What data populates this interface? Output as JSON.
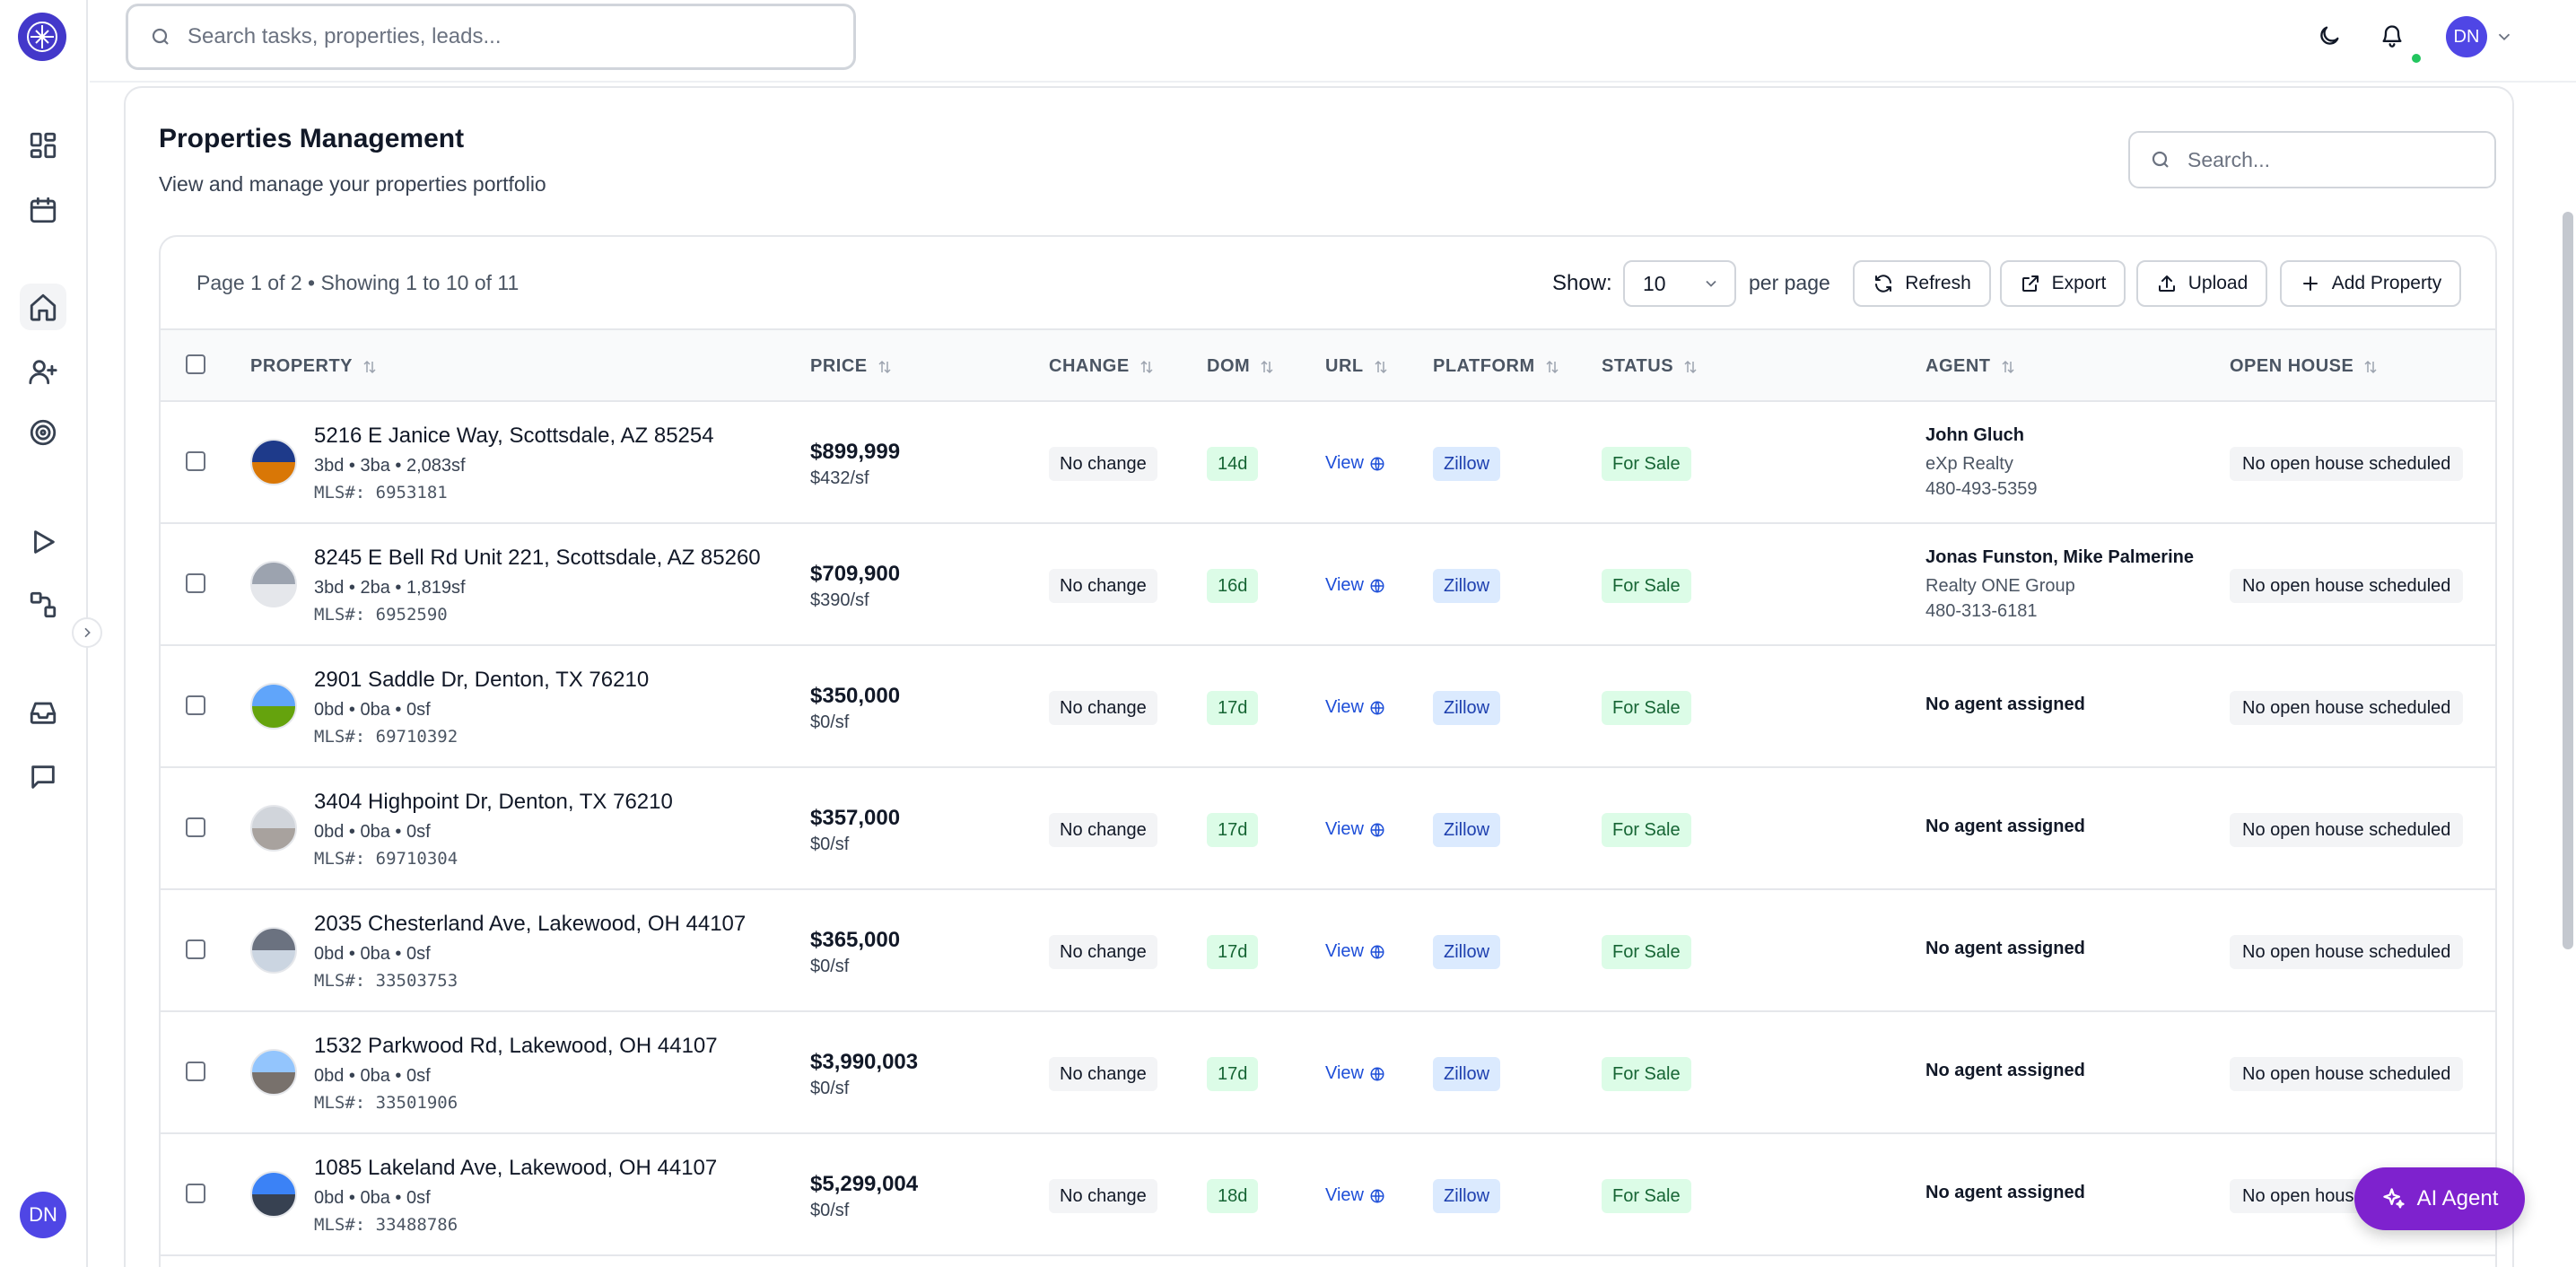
{
  "app": {
    "avatar_initials": "DN",
    "search_placeholder": "Search tasks, properties, leads..."
  },
  "page": {
    "title": "Properties Management",
    "subtitle": "View and manage your properties portfolio",
    "search_placeholder": "Search..."
  },
  "toolbar": {
    "page_info": "Page 1 of 2 • Showing 1 to 10 of 11",
    "show_label": "Show:",
    "per_page_value": "10",
    "per_page_label": "per page",
    "refresh": "Refresh",
    "export": "Export",
    "upload": "Upload",
    "add_property": "Add Property"
  },
  "columns": {
    "property": "PROPERTY",
    "price": "PRICE",
    "change": "CHANGE",
    "dom": "DOM",
    "url": "URL",
    "platform": "PLATFORM",
    "status": "STATUS",
    "agent": "AGENT",
    "open_house": "OPEN HOUSE"
  },
  "rows": [
    {
      "address": "5216 E Janice Way, Scottsdale, AZ 85254",
      "specs": "3bd • 3ba • 2,083sf",
      "mls": "MLS#: 6953181",
      "price": "$899,999",
      "ppsf": "$432/sf",
      "change": "No change",
      "dom": "14d",
      "url": "View",
      "platform": "Zillow",
      "status": "For Sale",
      "agent_name": "John Gluch",
      "agent_company": "eXp Realty",
      "agent_phone": "480-493-5359",
      "open_house": "No open house scheduled"
    },
    {
      "address": "8245 E Bell Rd Unit 221, Scottsdale, AZ 85260",
      "specs": "3bd • 2ba • 1,819sf",
      "mls": "MLS#: 6952590",
      "price": "$709,900",
      "ppsf": "$390/sf",
      "change": "No change",
      "dom": "16d",
      "url": "View",
      "platform": "Zillow",
      "status": "For Sale",
      "agent_name": "Jonas Funston, Mike Palmerine",
      "agent_company": "Realty ONE Group",
      "agent_phone": "480-313-6181",
      "open_house": "No open house scheduled"
    },
    {
      "address": "2901 Saddle Dr, Denton, TX 76210",
      "specs": "0bd • 0ba • 0sf",
      "mls": "MLS#: 69710392",
      "price": "$350,000",
      "ppsf": "$0/sf",
      "change": "No change",
      "dom": "17d",
      "url": "View",
      "platform": "Zillow",
      "status": "For Sale",
      "agent_name": "No agent assigned",
      "agent_company": "",
      "agent_phone": "",
      "open_house": "No open house scheduled"
    },
    {
      "address": "3404 Highpoint Dr, Denton, TX 76210",
      "specs": "0bd • 0ba • 0sf",
      "mls": "MLS#: 69710304",
      "price": "$357,000",
      "ppsf": "$0/sf",
      "change": "No change",
      "dom": "17d",
      "url": "View",
      "platform": "Zillow",
      "status": "For Sale",
      "agent_name": "No agent assigned",
      "agent_company": "",
      "agent_phone": "",
      "open_house": "No open house scheduled"
    },
    {
      "address": "2035 Chesterland Ave, Lakewood, OH 44107",
      "specs": "0bd • 0ba • 0sf",
      "mls": "MLS#: 33503753",
      "price": "$365,000",
      "ppsf": "$0/sf",
      "change": "No change",
      "dom": "17d",
      "url": "View",
      "platform": "Zillow",
      "status": "For Sale",
      "agent_name": "No agent assigned",
      "agent_company": "",
      "agent_phone": "",
      "open_house": "No open house scheduled"
    },
    {
      "address": "1532 Parkwood Rd, Lakewood, OH 44107",
      "specs": "0bd • 0ba • 0sf",
      "mls": "MLS#: 33501906",
      "price": "$3,990,003",
      "ppsf": "$0/sf",
      "change": "No change",
      "dom": "17d",
      "url": "View",
      "platform": "Zillow",
      "status": "For Sale",
      "agent_name": "No agent assigned",
      "agent_company": "",
      "agent_phone": "",
      "open_house": "No open house scheduled"
    },
    {
      "address": "1085 Lakeland Ave, Lakewood, OH 44107",
      "specs": "0bd • 0ba • 0sf",
      "mls": "MLS#: 33488786",
      "price": "$5,299,004",
      "ppsf": "$0/sf",
      "change": "No change",
      "dom": "18d",
      "url": "View",
      "platform": "Zillow",
      "status": "For Sale",
      "agent_name": "No agent assigned",
      "agent_company": "",
      "agent_phone": "",
      "open_house": "No open house scheduled"
    }
  ],
  "ai_agent": {
    "label": "AI Agent"
  },
  "colors": {
    "accent": "#4f46e5",
    "ai_button": "#7e22ce",
    "status_green": "#dcfce7",
    "platform_blue": "#dbeafe"
  }
}
